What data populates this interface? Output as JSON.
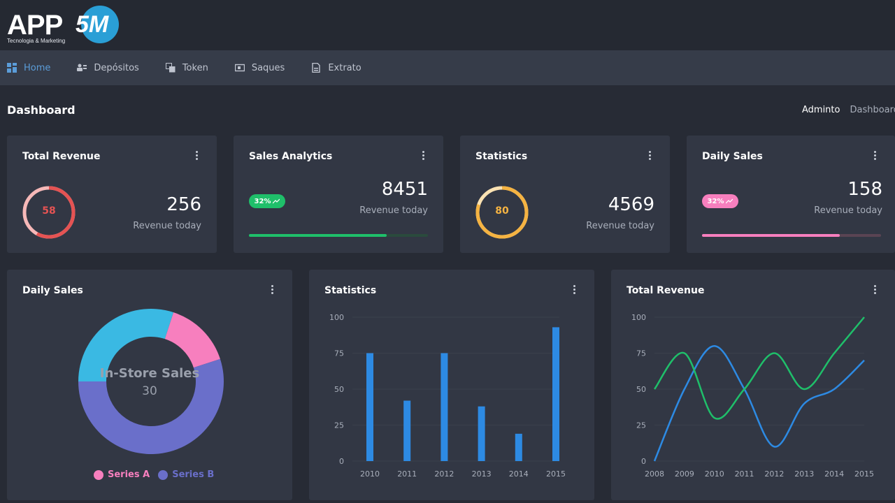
{
  "brand": {
    "name": "APP",
    "mark": "5M",
    "tagline": "Tecnologia & Marketing"
  },
  "nav": [
    {
      "label": "Home",
      "icon": "dashboard-icon",
      "active": true
    },
    {
      "label": "Depósitos",
      "icon": "users-icon",
      "active": false
    },
    {
      "label": "Token",
      "icon": "copy-icon",
      "active": false
    },
    {
      "label": "Saques",
      "icon": "wallet-icon",
      "active": false
    },
    {
      "label": "Extrato",
      "icon": "document-icon",
      "active": false
    }
  ],
  "page": {
    "title": "Dashboard"
  },
  "breadcrumb": {
    "home": "Adminto",
    "current": "Dashboard"
  },
  "colors": {
    "accent": "#5b9dd9",
    "red": "#e55353",
    "orange": "#f5b342",
    "green": "#1fbf6a",
    "pink": "#f77fbe",
    "blue": "#2d8ae3",
    "purple": "#6a6fca",
    "cyan": "#3ab9e3"
  },
  "cards": {
    "total_revenue": {
      "title": "Total Revenue",
      "ring_value": "58",
      "ring_percent": 58,
      "value": "256",
      "sub": "Revenue today"
    },
    "sales_analytics": {
      "title": "Sales Analytics",
      "badge": "32%",
      "value": "8451",
      "sub": "Revenue today",
      "progress": 77
    },
    "statistics": {
      "title": "Statistics",
      "ring_value": "80",
      "ring_percent": 80,
      "value": "4569",
      "sub": "Revenue today"
    },
    "daily_sales": {
      "title": "Daily Sales",
      "badge": "32%",
      "value": "158",
      "sub": "Revenue today",
      "progress": 77
    }
  },
  "panels": {
    "daily_sales": {
      "title": "Daily Sales"
    },
    "statistics": {
      "title": "Statistics"
    },
    "total_revenue": {
      "title": "Total Revenue"
    }
  },
  "chart_data": [
    {
      "type": "pie",
      "title": "Daily Sales",
      "center_label": "In-Store Sales",
      "center_value": "30",
      "labels": [
        "In-Store Sales",
        "Series A",
        "Series B"
      ],
      "values": [
        30,
        15,
        55
      ],
      "legend": [
        "Series A",
        "Series B"
      ],
      "legend_placement": "bottom"
    },
    {
      "type": "bar",
      "title": "Statistics",
      "categories": [
        "2010",
        "2011",
        "2012",
        "2013",
        "2014",
        "2015"
      ],
      "values": [
        75,
        42,
        75,
        38,
        19,
        93
      ],
      "ylim": [
        0,
        100
      ],
      "yticks": [
        0,
        25,
        50,
        75,
        100
      ],
      "grid": true
    },
    {
      "type": "line",
      "title": "Total Revenue",
      "x": [
        "2008",
        "2009",
        "2010",
        "2011",
        "2012",
        "2013",
        "2014",
        "2015"
      ],
      "series": [
        {
          "values": [
            0,
            50,
            80,
            50,
            10,
            40,
            50,
            70
          ]
        },
        {
          "values": [
            50,
            75,
            30,
            50,
            75,
            50,
            75,
            100
          ]
        }
      ],
      "ylim": [
        0,
        100
      ],
      "yticks": [
        0,
        25,
        50,
        75,
        100
      ],
      "grid": true
    }
  ]
}
